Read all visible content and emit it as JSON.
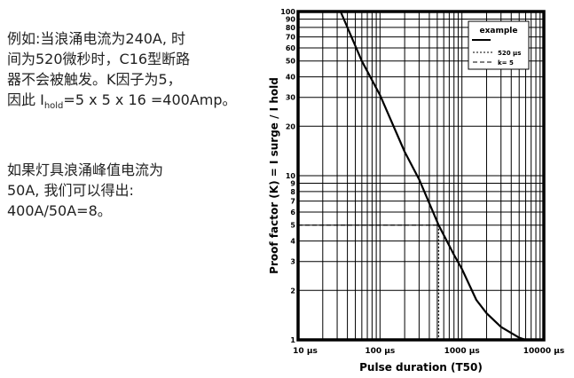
{
  "text": {
    "para1": [
      "例如:当浪涌电流为240A, 时",
      "间为520微秒时，C16型断路",
      "器不会被触发。K因子为5，"
    ],
    "para1_last": {
      "prefix": "因此 I",
      "sub": "hold",
      "suffix": "=5 x 5 x 16 =400Amp。"
    },
    "para2": [
      "如果灯具浪涌峰值电流为",
      "50A, 我们可以得出:",
      "400A/50A=8。"
    ]
  },
  "chart_data": {
    "type": "line",
    "xlabel": "Pulse duration (T50)",
    "ylabel": "Proof factor (K) = I surge / I hold",
    "x_scale": "log",
    "y_scale": "log",
    "xlim": [
      10,
      10000
    ],
    "ylim": [
      1,
      100
    ],
    "x_ticks": [
      10,
      100,
      1000,
      10000
    ],
    "x_tick_labels": [
      "10 µs",
      "100 µs",
      "1000 µs",
      "10000 µs"
    ],
    "y_ticks": [
      1,
      2,
      3,
      4,
      5,
      6,
      7,
      8,
      9,
      10,
      20,
      30,
      40,
      50,
      60,
      70,
      80,
      90,
      100
    ],
    "y_tick_labels": [
      "1",
      "2",
      "3",
      "4",
      "5",
      "6",
      "7",
      "8",
      "9",
      "10",
      "20",
      "30",
      "40",
      "50",
      "60",
      "70",
      "80",
      "90",
      "100"
    ],
    "grid": true,
    "legend": {
      "title": "example",
      "placement": "top-right",
      "entries": [
        {
          "label": "",
          "style": "solid"
        },
        {
          "label": "520 µs",
          "style": "dotted"
        },
        {
          "label": "k= 5",
          "style": "dashed"
        }
      ]
    },
    "series": [
      {
        "x": [
          33,
          60,
          100,
          200,
          300,
          520,
          800,
          1000,
          1500,
          2000,
          3000,
          4000,
          5000,
          6000
        ],
        "y": [
          100,
          50,
          31,
          14,
          9.5,
          5,
          3.3,
          2.7,
          1.75,
          1.45,
          1.2,
          1.1,
          1.03,
          1.0
        ]
      }
    ],
    "annotations": {
      "x_marker": 520,
      "y_marker": 5
    }
  }
}
